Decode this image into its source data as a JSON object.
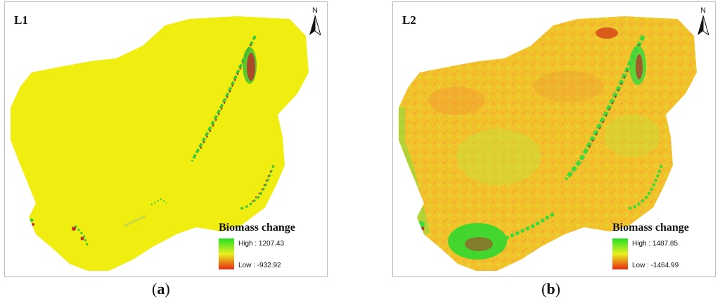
{
  "panels": [
    {
      "label": "L1",
      "north": "N",
      "north_icon": "north-arrow-icon",
      "legend": {
        "title": "Biomass change",
        "high_label": "High : 1207.43",
        "low_label": "Low : -932.92"
      },
      "caption_open": "(",
      "caption_letter": "a",
      "caption_close": ")",
      "base_color": "#f0ee10"
    },
    {
      "label": "L2",
      "north": "N",
      "north_icon": "north-arrow-icon",
      "legend": {
        "title": "Biomass change",
        "high_label": "High : 1487.85",
        "low_label": "Low : -1464.99"
      },
      "caption_open": "(",
      "caption_letter": "b",
      "caption_close": ")",
      "base_color": "#f2c22a"
    }
  ],
  "colors": {
    "high": "#22e022",
    "mid": "#e8f020",
    "low": "#e82a10"
  }
}
